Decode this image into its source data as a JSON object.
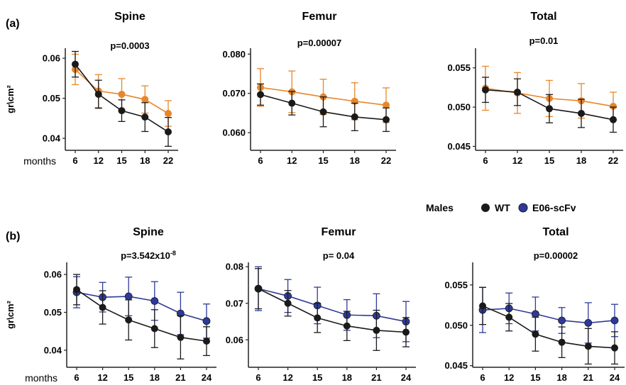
{
  "colors": {
    "wt": "#1a1a1a",
    "orange": "#e8862a",
    "blue": "#2e3a99"
  },
  "legend": {
    "label": "Males",
    "wt": "WT",
    "e06": "E06-scFv"
  },
  "labels": {
    "a": "(a)",
    "b": "(b)",
    "ylabel": "gr\\cm²",
    "months": "months"
  },
  "chart_data": [
    {
      "type": "line",
      "row": "a",
      "title": "Spine",
      "pvalue": "p=0.0003",
      "x": [
        "6",
        "12",
        "15",
        "18",
        "22"
      ],
      "yticks": [
        "0.04",
        "0.05",
        "0.06"
      ],
      "ylim": [
        0.037,
        0.0625
      ],
      "series": [
        {
          "color_key": "orange",
          "values": [
            0.0572,
            0.0518,
            0.051,
            0.0497,
            0.0462
          ],
          "err": [
            0.0038,
            0.0041,
            0.0039,
            0.0034,
            0.0032
          ]
        },
        {
          "name": "WT",
          "color_key": "wt",
          "values": [
            0.0585,
            0.051,
            0.0469,
            0.0453,
            0.0416
          ],
          "err": [
            0.0032,
            0.0035,
            0.0027,
            0.0036,
            0.0036
          ]
        }
      ]
    },
    {
      "type": "line",
      "row": "a",
      "title": "Femur",
      "pvalue": "p=0.00007",
      "x": [
        "6",
        "12",
        "15",
        "18",
        "22"
      ],
      "yticks": [
        "0.060",
        "0.070",
        "0.080"
      ],
      "ylim": [
        0.0555,
        0.0815
      ],
      "series": [
        {
          "color_key": "orange",
          "values": [
            0.0715,
            0.0704,
            0.0691,
            0.068,
            0.067
          ],
          "err": [
            0.0048,
            0.0053,
            0.0045,
            0.0047,
            0.0044
          ]
        },
        {
          "name": "WT",
          "color_key": "wt",
          "values": [
            0.0697,
            0.0675,
            0.0653,
            0.064,
            0.0633
          ],
          "err": [
            0.0027,
            0.003,
            0.0038,
            0.0035,
            0.003
          ]
        }
      ]
    },
    {
      "type": "line",
      "row": "a",
      "title": "Total",
      "pvalue": "p=0.01",
      "x": [
        "6",
        "12",
        "15",
        "18",
        "22"
      ],
      "yticks": [
        "0.045",
        "0.050",
        "0.055"
      ],
      "ylim": [
        0.0445,
        0.0575
      ],
      "series": [
        {
          "color_key": "orange",
          "values": [
            0.0524,
            0.0518,
            0.0511,
            0.0508,
            0.0501
          ],
          "err": [
            0.0028,
            0.0026,
            0.0023,
            0.0022,
            0.0018
          ]
        },
        {
          "name": "WT",
          "color_key": "wt",
          "values": [
            0.0522,
            0.0519,
            0.0498,
            0.0492,
            0.0484
          ],
          "err": [
            0.0016,
            0.0017,
            0.0018,
            0.0018,
            0.0016
          ]
        }
      ]
    },
    {
      "type": "line",
      "row": "b",
      "title": "Spine",
      "pvalue": "p=3.542x10",
      "pvalue_exp": "-8",
      "x": [
        "6",
        "12",
        "15",
        "18",
        "21",
        "24"
      ],
      "yticks": [
        "0.04",
        "0.05",
        "0.06"
      ],
      "ylim": [
        0.0355,
        0.0632
      ],
      "series": [
        {
          "name": "E06-scFv",
          "color_key": "blue",
          "values": [
            0.0553,
            0.054,
            0.0542,
            0.053,
            0.0497,
            0.0477
          ],
          "err": [
            0.0041,
            0.0039,
            0.0051,
            0.0051,
            0.0056,
            0.0045
          ]
        },
        {
          "name": "WT",
          "color_key": "wt",
          "values": [
            0.056,
            0.0513,
            0.048,
            0.0457,
            0.0434,
            0.0424
          ],
          "err": [
            0.004,
            0.0044,
            0.0053,
            0.005,
            0.0057,
            0.0038
          ]
        }
      ]
    },
    {
      "type": "line",
      "row": "b",
      "title": "Femur",
      "pvalue": "p= 0.04",
      "x": [
        "6",
        "12",
        "15",
        "18",
        "21",
        "24"
      ],
      "yticks": [
        "0.06",
        "0.07",
        "0.08"
      ],
      "ylim": [
        0.0525,
        0.0812
      ],
      "series": [
        {
          "name": "E06-scFv",
          "color_key": "blue",
          "values": [
            0.074,
            0.072,
            0.0694,
            0.0668,
            0.0666,
            0.065
          ],
          "err": [
            0.006,
            0.0045,
            0.005,
            0.0042,
            0.006,
            0.0055
          ]
        },
        {
          "name": "WT",
          "color_key": "wt",
          "values": [
            0.074,
            0.07,
            0.066,
            0.0638,
            0.0626,
            0.0621
          ],
          "err": [
            0.0055,
            0.0035,
            0.004,
            0.004,
            0.0055,
            0.004
          ]
        }
      ]
    },
    {
      "type": "line",
      "row": "b",
      "title": "Total",
      "pvalue": "p=0.00002",
      "x": [
        "6",
        "12",
        "15",
        "18",
        "21",
        "24"
      ],
      "yticks": [
        "0.045",
        "0.050",
        "0.055"
      ],
      "ylim": [
        0.0448,
        0.0578
      ],
      "series": [
        {
          "name": "E06-scFv",
          "color_key": "blue",
          "values": [
            0.0519,
            0.0521,
            0.0514,
            0.0506,
            0.0503,
            0.0506
          ],
          "err": [
            0.0028,
            0.0019,
            0.0021,
            0.0016,
            0.0025,
            0.002
          ]
        },
        {
          "name": "WT",
          "color_key": "wt",
          "values": [
            0.0524,
            0.051,
            0.0489,
            0.0479,
            0.0474,
            0.0472
          ],
          "err": [
            0.0023,
            0.0017,
            0.0021,
            0.0019,
            0.0022,
            0.002
          ]
        }
      ]
    }
  ]
}
